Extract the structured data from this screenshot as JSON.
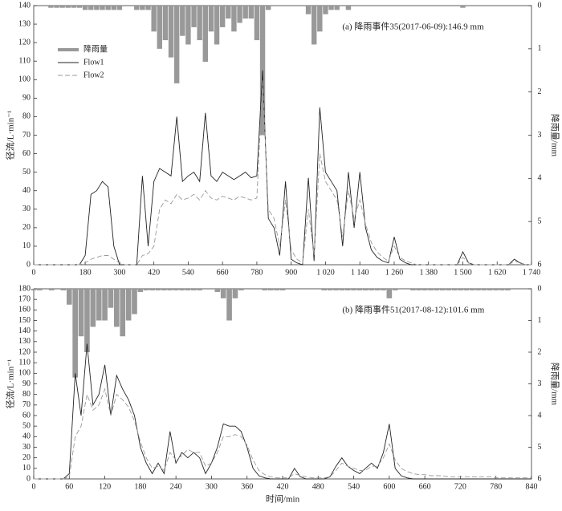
{
  "chart_data": [
    {
      "type": "line",
      "title": "(a) 降雨事件35(2017-06-09):146.9 mm",
      "ylabel": "径流/L·min⁻¹",
      "y2label": "降雨量/mm",
      "legend": "upper left",
      "x": [
        0,
        20,
        40,
        60,
        80,
        100,
        120,
        140,
        160,
        180,
        200,
        220,
        240,
        260,
        280,
        300,
        320,
        340,
        360,
        380,
        400,
        420,
        440,
        460,
        480,
        500,
        520,
        540,
        560,
        580,
        600,
        620,
        640,
        660,
        680,
        700,
        720,
        740,
        760,
        780,
        800,
        820,
        840,
        860,
        880,
        900,
        920,
        940,
        960,
        980,
        1000,
        1020,
        1040,
        1060,
        1080,
        1100,
        1120,
        1140,
        1160,
        1180,
        1200,
        1220,
        1240,
        1260,
        1280,
        1300,
        1320,
        1340,
        1360,
        1380,
        1400,
        1420,
        1440,
        1460,
        1480,
        1500,
        1520,
        1540,
        1560,
        1580,
        1600,
        1620,
        1640,
        1660,
        1680,
        1700,
        1720,
        1740
      ],
      "series": [
        {
          "name": "降雨量",
          "type": "bar",
          "axis": "y2",
          "color": "#999999",
          "values": [
            0,
            0,
            0,
            0.05,
            0.05,
            0.05,
            0.05,
            0.05,
            0.05,
            0.1,
            0.1,
            0.1,
            0.1,
            0.1,
            0.1,
            0.1,
            0,
            0,
            0.1,
            0.1,
            0.1,
            0.6,
            1.0,
            0.8,
            1.2,
            1.8,
            0.7,
            0.9,
            0.5,
            0.8,
            1.3,
            0.6,
            0.9,
            0.5,
            0.3,
            0.6,
            0.4,
            0.3,
            0.3,
            0.8,
            3.0,
            0.1,
            0,
            0,
            0,
            0,
            0,
            0,
            0.2,
            0.9,
            0.6,
            0.2,
            0.1,
            0.1,
            0,
            0.1,
            0,
            0,
            0,
            0,
            0,
            0,
            0,
            0,
            0,
            0,
            0,
            0,
            0,
            0,
            0,
            0,
            0,
            0,
            0,
            0.05,
            0,
            0,
            0,
            0,
            0,
            0,
            0,
            0,
            0,
            0,
            0,
            0
          ]
        },
        {
          "name": "Flow1",
          "color": "#222222",
          "dash": false,
          "values": [
            0,
            0,
            0,
            0,
            0,
            0,
            0,
            0,
            0,
            5,
            38,
            40,
            45,
            42,
            10,
            0,
            0,
            0,
            0,
            48,
            10,
            45,
            52,
            50,
            48,
            80,
            45,
            48,
            50,
            45,
            82,
            48,
            45,
            50,
            48,
            46,
            48,
            50,
            47,
            48,
            105,
            25,
            20,
            5,
            45,
            3,
            1,
            0,
            47,
            2,
            85,
            50,
            45,
            40,
            10,
            50,
            20,
            50,
            20,
            8,
            4,
            2,
            1,
            15,
            3,
            1,
            0,
            0,
            0,
            0,
            0,
            0,
            0,
            0,
            0,
            7,
            1,
            0,
            0,
            0,
            0,
            0,
            0,
            0,
            3,
            1,
            0,
            0
          ]
        },
        {
          "name": "Flow2",
          "color": "#999999",
          "dash": true,
          "values": [
            0,
            0,
            0,
            0,
            0,
            0,
            0,
            0,
            0,
            1,
            3,
            4,
            5,
            5,
            3,
            1,
            0,
            0,
            0,
            5,
            6,
            10,
            30,
            35,
            33,
            38,
            35,
            36,
            38,
            35,
            40,
            36,
            35,
            37,
            36,
            35,
            37,
            36,
            35,
            36,
            100,
            30,
            25,
            10,
            35,
            8,
            3,
            1,
            30,
            5,
            60,
            45,
            40,
            35,
            15,
            40,
            25,
            35,
            22,
            12,
            7,
            4,
            2,
            10,
            4,
            2,
            1,
            0,
            0,
            0,
            0,
            0,
            0,
            0,
            0,
            4,
            1,
            0,
            0,
            0,
            0,
            0,
            0,
            0,
            2,
            1,
            0,
            0
          ]
        }
      ],
      "xlim": [
        0,
        1740
      ],
      "xticks": [
        0,
        180,
        300,
        420,
        540,
        660,
        780,
        900,
        {
          "value": 1020,
          "label": "1 020"
        },
        {
          "value": 1140,
          "label": "1 140"
        },
        {
          "value": 1260,
          "label": "1 260"
        },
        {
          "value": 1380,
          "label": "1 380"
        },
        {
          "value": 1500,
          "label": "1 500"
        },
        {
          "value": 1620,
          "label": "1 620"
        },
        {
          "value": 1740,
          "label": "1 740"
        }
      ],
      "ylim": [
        0,
        140
      ],
      "yticks": [
        0,
        10,
        20,
        30,
        40,
        50,
        60,
        70,
        80,
        90,
        100,
        110,
        120,
        130,
        140
      ],
      "y2lim": [
        0,
        6
      ],
      "y2ticks": [
        0,
        1,
        2,
        3,
        4,
        5,
        6
      ],
      "y2_inverted": true
    },
    {
      "type": "line",
      "title": "(b) 降雨事件51(2017-08-12):101.6 mm",
      "xlabel": "时间/min",
      "ylabel": "径流/L·min⁻¹",
      "y2label": "降雨量/mm",
      "x": [
        0,
        10,
        20,
        30,
        40,
        50,
        60,
        70,
        80,
        90,
        100,
        110,
        120,
        130,
        140,
        150,
        160,
        170,
        180,
        190,
        200,
        210,
        220,
        230,
        240,
        250,
        260,
        270,
        280,
        290,
        300,
        310,
        320,
        330,
        340,
        350,
        360,
        370,
        380,
        390,
        400,
        410,
        420,
        430,
        440,
        450,
        460,
        470,
        480,
        490,
        500,
        510,
        520,
        530,
        540,
        550,
        560,
        570,
        580,
        590,
        600,
        610,
        620,
        630,
        640,
        650,
        660,
        670,
        680,
        690,
        700,
        710,
        720,
        730,
        740,
        750,
        760,
        770,
        780,
        790,
        800,
        810,
        820,
        830,
        840
      ],
      "series": [
        {
          "type": "bar",
          "axis": "y2",
          "color": "#999999",
          "values": [
            0.05,
            0.05,
            0,
            0.05,
            0,
            0.05,
            0.5,
            2.8,
            1.5,
            2.0,
            1.2,
            1.0,
            1.0,
            0.6,
            1.2,
            1.5,
            1.0,
            0.8,
            0.1,
            0.05,
            0.05,
            0.05,
            0.05,
            0.05,
            0.05,
            0.05,
            0.05,
            0.05,
            0.05,
            0,
            0,
            0.1,
            0.3,
            1.0,
            0.3,
            0.05,
            0,
            0,
            0,
            0.05,
            0.05,
            0.05,
            0.05,
            0,
            0,
            0,
            0,
            0,
            0,
            0.05,
            0.05,
            0.05,
            0.05,
            0.05,
            0.05,
            0.05,
            0.05,
            0.05,
            0.05,
            0.05,
            0.3,
            0.05,
            0,
            0,
            0.05,
            0.05,
            0.05,
            0.05,
            0.05,
            0.05,
            0.05,
            0.05,
            0.05,
            0.05,
            0.05,
            0.05,
            0.05,
            0.05,
            0.05,
            0.05,
            0.05,
            0,
            0,
            0,
            0
          ]
        },
        {
          "color": "#222222",
          "dash": false,
          "values": [
            0,
            0,
            0,
            0,
            0,
            0,
            5,
            100,
            60,
            128,
            70,
            80,
            108,
            60,
            98,
            85,
            75,
            60,
            30,
            15,
            5,
            15,
            5,
            45,
            15,
            25,
            20,
            25,
            20,
            5,
            15,
            30,
            52,
            50,
            50,
            45,
            30,
            10,
            3,
            1,
            0,
            0,
            0,
            0,
            10,
            2,
            0,
            0,
            0,
            0,
            2,
            12,
            20,
            12,
            8,
            5,
            10,
            15,
            10,
            25,
            52,
            10,
            3,
            1,
            0,
            0,
            0,
            0,
            0,
            0,
            0,
            0,
            0,
            0,
            0,
            0,
            0,
            0,
            0,
            0,
            0,
            0,
            0,
            0,
            0
          ]
        },
        {
          "color": "#999999",
          "dash": true,
          "values": [
            0,
            0,
            0,
            0,
            0,
            0,
            2,
            40,
            50,
            80,
            65,
            70,
            85,
            60,
            80,
            75,
            68,
            55,
            35,
            20,
            10,
            12,
            8,
            25,
            18,
            22,
            28,
            25,
            25,
            12,
            15,
            25,
            40,
            40,
            42,
            40,
            32,
            18,
            8,
            4,
            2,
            1,
            1,
            1,
            5,
            3,
            2,
            1,
            1,
            1,
            2,
            8,
            15,
            12,
            10,
            8,
            8,
            12,
            12,
            20,
            33,
            18,
            10,
            7,
            5,
            4,
            4,
            3,
            3,
            3,
            2,
            2,
            2,
            2,
            2,
            2,
            2,
            2,
            1,
            1,
            1,
            1,
            1,
            1,
            1
          ]
        }
      ],
      "xlim": [
        0,
        840
      ],
      "xticks": [
        0,
        60,
        120,
        180,
        240,
        300,
        360,
        420,
        480,
        540,
        600,
        660,
        720,
        780,
        840
      ],
      "ylim": [
        0,
        180
      ],
      "yticks": [
        0,
        10,
        20,
        30,
        40,
        50,
        60,
        70,
        80,
        90,
        100,
        110,
        120,
        130,
        140,
        150,
        160,
        170,
        180
      ],
      "y2lim": [
        0,
        6
      ],
      "y2ticks": [
        0,
        1,
        2,
        3,
        4,
        5,
        6
      ],
      "y2_inverted": true
    }
  ]
}
